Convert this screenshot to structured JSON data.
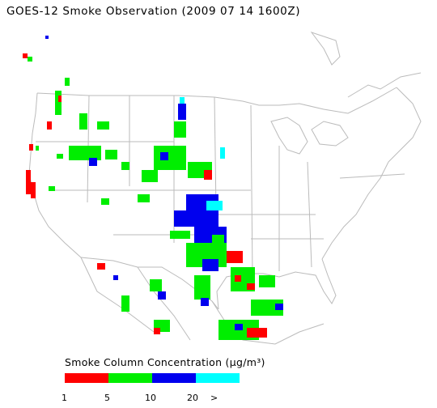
{
  "title": "GOES-12 Smoke Observation (2009 07 14  1600Z)",
  "legend": {
    "title": "Smoke Column Concentration (µg/m³)",
    "bins": [
      {
        "color": "#ff0000",
        "label": "1"
      },
      {
        "color": "#00ee00",
        "label": "5"
      },
      {
        "color": "#0000ee",
        "label": "10"
      },
      {
        "color": "#00ffff",
        "label": "20"
      }
    ],
    "overflow_label": ">"
  },
  "map": {
    "region": "Contiguous United States",
    "boundary_color": "#bbbbbb",
    "smoke_areas": [
      {
        "area": "Southern California coast",
        "level": "1-5"
      },
      {
        "area": "Pacific Northwest",
        "level": "1-10"
      },
      {
        "area": "Idaho / Montana / Wyoming",
        "level": "5-10"
      },
      {
        "area": "Northern Plains",
        "level": "5-20"
      },
      {
        "area": "Kansas / Oklahoma",
        "level": "10-20"
      },
      {
        "area": "Texas / Louisiana",
        "level": "1-10"
      },
      {
        "area": "Gulf of Mexico coast",
        "level": "1-10"
      },
      {
        "area": "Northern Mexico",
        "level": "1-10"
      }
    ]
  }
}
